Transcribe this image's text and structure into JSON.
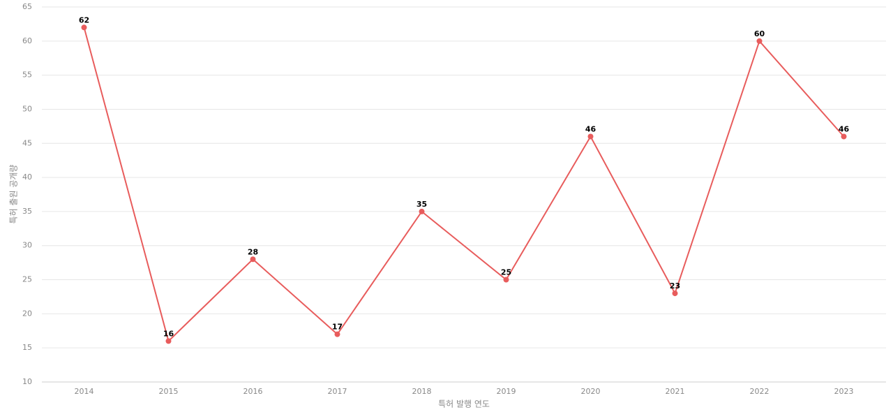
{
  "chart_data": {
    "type": "line",
    "x_label": "특허 발행 연도",
    "y_label": "특허 출원 공개량",
    "categories": [
      "2014",
      "2015",
      "2016",
      "2017",
      "2018",
      "2019",
      "2020",
      "2021",
      "2022",
      "2023"
    ],
    "values": [
      62,
      16,
      28,
      17,
      35,
      25,
      46,
      23,
      60,
      46
    ],
    "color": "#e85c5c",
    "ylim": [
      10,
      65
    ],
    "yticks": [
      10,
      15,
      20,
      25,
      30,
      35,
      40,
      45,
      50,
      55,
      60,
      65
    ],
    "grid": true,
    "data_labels": true
  }
}
